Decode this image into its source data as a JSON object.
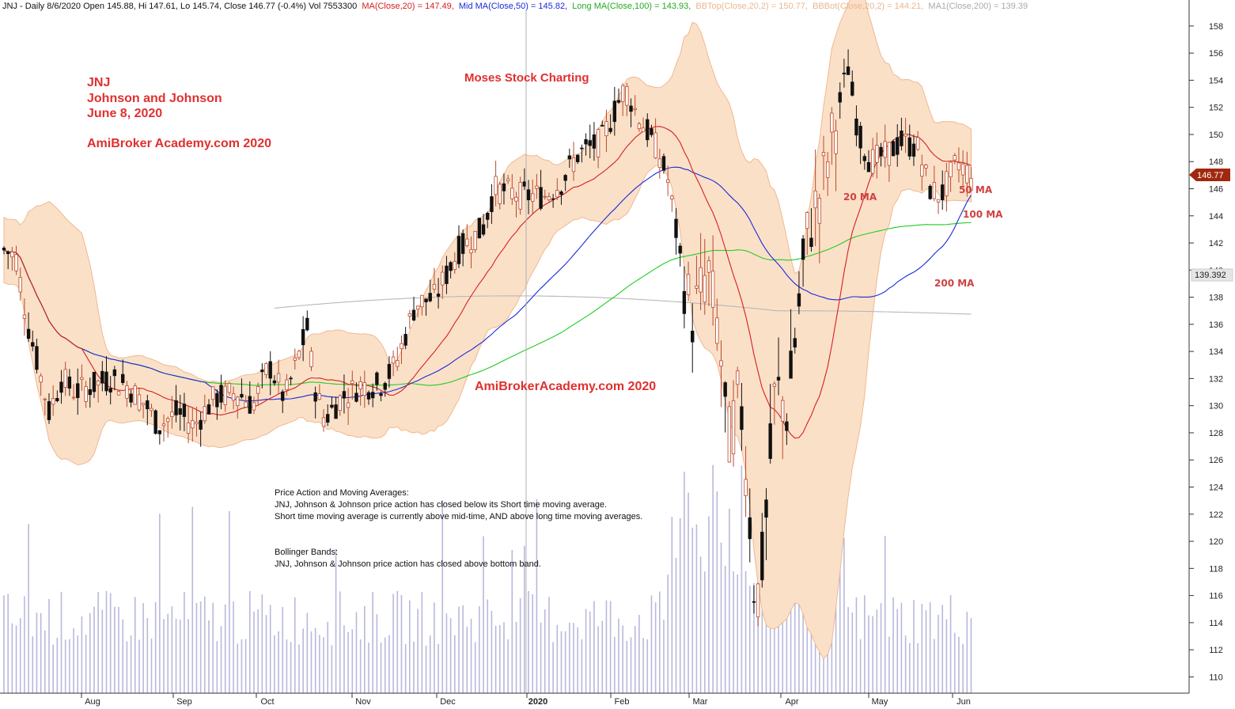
{
  "header": {
    "prefix": "JNJ - Daily 8/6/2020 Open 145.88, Hi 147.61, Lo 145.74, Close 146.77 (-0.4%) Vol 7553300",
    "ma20": "MA(Close,20) = 147.49,",
    "ma50": "Mid MA(Close,50) = 145.82,",
    "ma100": "Long MA(Close,100) = 143.93,",
    "bbtop": "BBTop(Close,20,2) = 150.77,",
    "bbbot": "BBBot(Close,20,2) = 144.21,",
    "ma200": "MA1(Close,200) = 139.39"
  },
  "colors": {
    "ma20": "#d42020",
    "ma50": "#1a2ad8",
    "ma100": "#22cc22",
    "ma200": "#b8b8b8",
    "band": "#fbe0c8",
    "band_edge": "#f0b890",
    "volume": "#b8b8dc",
    "candle_up": "#b84a2c",
    "candle_down": "#111111",
    "price_tag": "#a0280e",
    "annotation": "#e03030"
  },
  "annotations": {
    "ticker": "JNJ",
    "company": "Johnson and Johnson",
    "date": "June 8, 2020",
    "brand1": "AmiBroker Academy.com  2020",
    "moses": "Moses Stock Charting",
    "brand2": "AmiBrokerAcademy.com   2020",
    "label_20ma": "20 MA",
    "label_50ma": "50 MA",
    "label_100ma": "100 MA",
    "label_200ma": "200 MA"
  },
  "notes": {
    "pa_title": "Price Action and Moving Averages:",
    "pa_line1": "JNJ, Johnson & Johnson price action has closed below its Short time moving average.",
    "pa_line2": "Short time moving average is currently above mid-time, AND above long time moving averages.",
    "bb_title": "Bollinger Bands:",
    "bb_line1": "JNJ, Johnson & Johnson price action has closed above bottom band."
  },
  "price_tags": {
    "close": "146.77",
    "ma200": "139.392"
  },
  "chart_data": {
    "type": "candlestick",
    "y_ticks": [
      110,
      112,
      114,
      116,
      118,
      120,
      122,
      124,
      126,
      128,
      130,
      132,
      134,
      136,
      138,
      140,
      142,
      144,
      146,
      148,
      150,
      152,
      154,
      156,
      158
    ],
    "ylim": [
      108.8,
      159.1
    ],
    "x_months": [
      "Aug",
      "Sep",
      "Oct",
      "Nov",
      "Dec",
      "2020",
      "Feb",
      "Mar",
      "Apr",
      "May",
      "Jun"
    ],
    "grid": "vertical year separator only",
    "approx_close_path": [
      {
        "date": "Jul 1",
        "close": 141.5
      },
      {
        "date": "Jul 10",
        "close": 136.5
      },
      {
        "date": "Jul 20",
        "close": 131.0
      },
      {
        "date": "Aug 1",
        "close": 131.0
      },
      {
        "date": "Aug 15",
        "close": 131.0
      },
      {
        "date": "Sep 1",
        "close": 129.5
      },
      {
        "date": "Sep 15",
        "close": 130.5
      },
      {
        "date": "Oct 1",
        "close": 131.0
      },
      {
        "date": "Oct 15",
        "close": 133.0
      },
      {
        "date": "Nov 1",
        "close": 131.0
      },
      {
        "date": "Nov 15",
        "close": 132.0
      },
      {
        "date": "Dec 1",
        "close": 138.0
      },
      {
        "date": "Dec 20",
        "close": 145.5
      },
      {
        "date": "Jan 1",
        "close": 145.5
      },
      {
        "date": "Jan 15",
        "close": 147.5
      },
      {
        "date": "Feb 1",
        "close": 151.5
      },
      {
        "date": "Feb 15",
        "close": 149.0
      },
      {
        "date": "Feb 25",
        "close": 141.0
      },
      {
        "date": "Mar 10",
        "close": 130.0
      },
      {
        "date": "Mar 20",
        "close": 113.0
      },
      {
        "date": "Apr 1",
        "close": 132.0
      },
      {
        "date": "Apr 10",
        "close": 141.0
      },
      {
        "date": "Apr 20",
        "close": 155.0
      },
      {
        "date": "May 1",
        "close": 148.0
      },
      {
        "date": "May 15",
        "close": 150.0
      },
      {
        "date": "Jun 1",
        "close": 146.0
      },
      {
        "date": "Jun 8",
        "close": 146.77
      }
    ],
    "last_close": 146.77
  }
}
